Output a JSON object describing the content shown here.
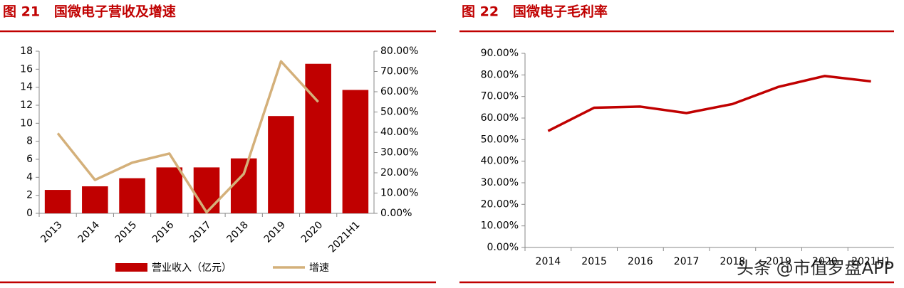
{
  "chart_data": [
    {
      "type": "bar",
      "title": "图 21   国微电子营收及增速",
      "categories": [
        "2013",
        "2014",
        "2015",
        "2016",
        "2017",
        "2018",
        "2019",
        "2020",
        "2021H1"
      ],
      "series": [
        {
          "name": "营业收入（亿元）",
          "type": "bar",
          "color": "#c00000",
          "values": [
            2.6,
            3.0,
            3.9,
            5.1,
            5.1,
            6.1,
            10.8,
            16.6,
            13.7
          ]
        },
        {
          "name": "增速",
          "type": "line",
          "axis": "y2",
          "color": "#d4b07a",
          "values": [
            39.5,
            16.5,
            25,
            29.5,
            0.5,
            19.5,
            75,
            55,
            null
          ]
        }
      ],
      "ylim": [
        0,
        18
      ],
      "yticks": [
        0,
        2,
        4,
        6,
        8,
        10,
        12,
        14,
        16,
        18
      ],
      "y2lim": [
        0,
        80
      ],
      "y2ticks": [
        {
          "value": 0,
          "label": "0.00%"
        },
        {
          "value": 10,
          "label": "10.00%"
        },
        {
          "value": 20,
          "label": "20.00%"
        },
        {
          "value": 30,
          "label": "30.00%"
        },
        {
          "value": 40,
          "label": "40.00%"
        },
        {
          "value": 50,
          "label": "50.00%"
        },
        {
          "value": 60,
          "label": "60.00%"
        },
        {
          "value": 70,
          "label": "70.00%"
        },
        {
          "value": 80,
          "label": "80.00%"
        }
      ],
      "legend": "bottom"
    },
    {
      "type": "line",
      "title": "图 22   国微电子毛利率",
      "categories": [
        "2014",
        "2015",
        "2016",
        "2017",
        "2018",
        "2019",
        "2020",
        "2021H1"
      ],
      "series": [
        {
          "name": "毛利率",
          "color": "#c00000",
          "values": [
            54,
            64.8,
            65.3,
            62.3,
            66.5,
            74.5,
            79.5,
            77
          ]
        }
      ],
      "ylim": [
        0,
        90
      ],
      "yticks": [
        {
          "value": 0,
          "label": "0.00%"
        },
        {
          "value": 10,
          "label": "10.00%"
        },
        {
          "value": 20,
          "label": "20.00%"
        },
        {
          "value": 30,
          "label": "30.00%"
        },
        {
          "value": 40,
          "label": "40.00%"
        },
        {
          "value": 50,
          "label": "50.00%"
        },
        {
          "value": 60,
          "label": "60.00%"
        },
        {
          "value": 70,
          "label": "70.00%"
        },
        {
          "value": 80,
          "label": "80.00%"
        },
        {
          "value": 90,
          "label": "90.00%"
        }
      ],
      "watermark": "头条 @市值罗盘APP"
    }
  ]
}
